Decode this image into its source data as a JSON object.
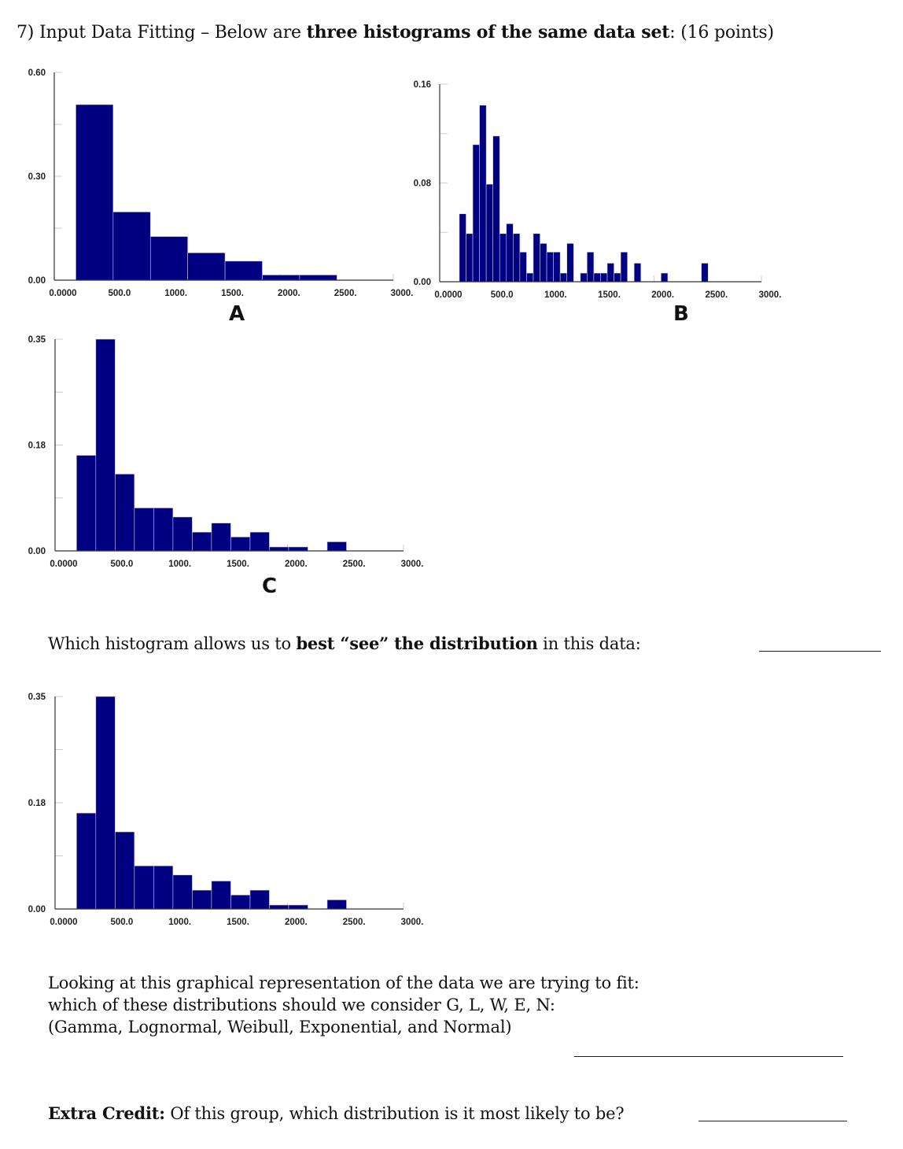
{
  "question": {
    "number": "7)",
    "intro": "Input Data Fitting – Below are ",
    "intro_bold": "three histograms of the same data set",
    "intro_end": ": (16 points)"
  },
  "labels": {
    "a": "A",
    "b": "B",
    "c": "C"
  },
  "q1": {
    "pre": "Which histogram allows us to ",
    "bold": "best “see” the distribution",
    "post": " in this data:"
  },
  "q2": {
    "line1": "Looking at this graphical representation of the data we are trying to fit:",
    "line2": "which of these distributions should we consider G, L, W, E, N:",
    "line3": "(Gamma, Lognormal, Weibull, Exponential, and Normal)"
  },
  "extra": {
    "bold": "Extra Credit:",
    "text": "  Of this group, which distribution is it most likely to be?"
  },
  "chart_data": [
    {
      "type": "bar",
      "label": "A",
      "color": "#000080",
      "xlim": [
        0,
        3000
      ],
      "ylim": [
        0,
        0.6
      ],
      "xticks": [
        "0.0000",
        "500.0",
        "1000.",
        "1500.",
        "2000.",
        "2500.",
        "3000."
      ],
      "yticks": [
        "0.00",
        "0.30",
        "0.60"
      ],
      "bin_start": 191,
      "bin_width": 330,
      "values": [
        0.507,
        0.197,
        0.126,
        0.079,
        0.055,
        0.015,
        0.015
      ]
    },
    {
      "type": "bar",
      "label": "B",
      "color": "#000080",
      "xlim": [
        0,
        3000
      ],
      "ylim": [
        0,
        0.16
      ],
      "xticks": [
        "0.0000",
        "500.0",
        "1000.",
        "1500.",
        "2000.",
        "2500.",
        "3000."
      ],
      "yticks": [
        "0.00",
        "0.08",
        "0.16"
      ],
      "bin_start": 183,
      "bin_width": 62.7,
      "values": [
        0.055,
        0.039,
        0.111,
        0.143,
        0.079,
        0.118,
        0.039,
        0.047,
        0.039,
        0.024,
        0.007,
        0.039,
        0.031,
        0.024,
        0.024,
        0.007,
        0.031,
        0,
        0.007,
        0.024,
        0.007,
        0.007,
        0.015,
        0.007,
        0.024,
        0,
        0.015,
        0,
        0,
        0,
        0.007,
        0,
        0,
        0,
        0,
        0,
        0.015
      ]
    },
    {
      "type": "bar",
      "label": "C",
      "color": "#000080",
      "xlim": [
        0,
        3000
      ],
      "ylim": [
        0,
        0.35
      ],
      "xticks": [
        "0.0000",
        "500.0",
        "1000.",
        "1500.",
        "2000.",
        "2500.",
        "3000."
      ],
      "yticks": [
        "0.00",
        "0.18",
        "0.35"
      ],
      "bin_start": 185,
      "bin_width": 166,
      "values": [
        0.158,
        0.35,
        0.127,
        0.071,
        0.071,
        0.056,
        0.031,
        0.046,
        0.023,
        0.031,
        0.0065,
        0.0065,
        0,
        0.015
      ]
    },
    {
      "type": "bar",
      "color": "#000080",
      "xlim": [
        0,
        3000
      ],
      "ylim": [
        0,
        0.35
      ],
      "xticks": [
        "0.0000",
        "500.0",
        "1000.",
        "1500.",
        "2000.",
        "2500.",
        "3000."
      ],
      "yticks": [
        "0.00",
        "0.18",
        "0.35"
      ],
      "bin_start": 185,
      "bin_width": 166,
      "values": [
        0.158,
        0.35,
        0.127,
        0.071,
        0.071,
        0.056,
        0.031,
        0.046,
        0.023,
        0.031,
        0.0065,
        0.0065,
        0,
        0.015
      ]
    }
  ]
}
